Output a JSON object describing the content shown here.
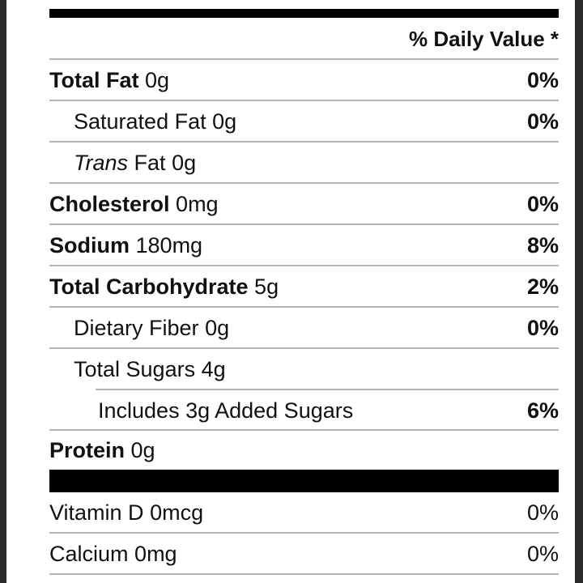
{
  "header": {
    "daily_value": "% Daily Value *"
  },
  "nutrients": [
    {
      "name": "Total Fat",
      "amount": "0g",
      "percent": "0%"
    },
    {
      "name": "Saturated Fat",
      "amount": "0g",
      "percent": "0%"
    },
    {
      "name_italic": "Trans",
      "name": "Fat",
      "amount": "0g"
    },
    {
      "name": "Cholesterol",
      "amount": "0mg",
      "percent": "0%"
    },
    {
      "name": "Sodium",
      "amount": "180mg",
      "percent": "8%"
    },
    {
      "name": "Total Carbohydrate",
      "amount": "5g",
      "percent": "2%"
    },
    {
      "name": "Dietary Fiber",
      "amount": "0g",
      "percent": "0%"
    },
    {
      "name": "Total Sugars",
      "amount": "4g"
    },
    {
      "text": "Includes 3g Added Sugars",
      "percent": "6%"
    },
    {
      "name": "Protein",
      "amount": "0g"
    }
  ],
  "vitamins": [
    {
      "name": "Vitamin D",
      "amount": "0mcg",
      "percent": "0%"
    },
    {
      "name": "Calcium",
      "amount": "0mg",
      "percent": "0%"
    }
  ]
}
